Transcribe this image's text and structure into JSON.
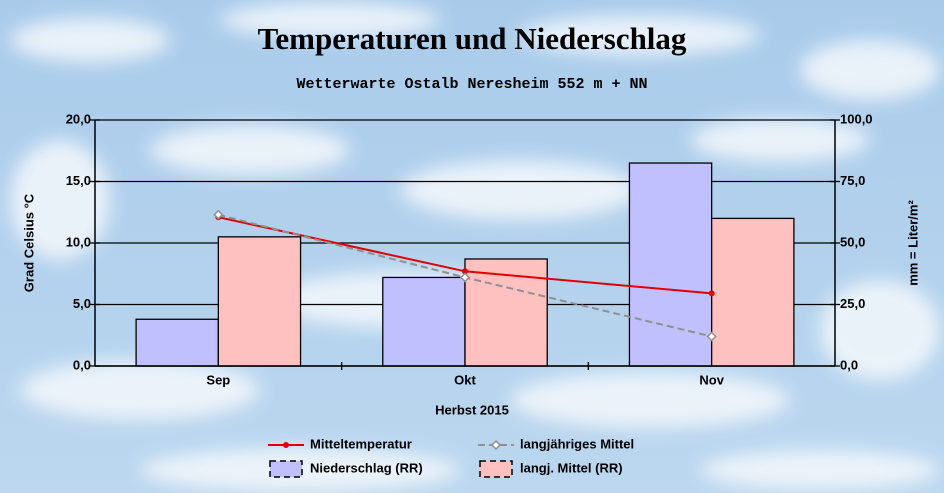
{
  "chart_data": {
    "type": "bar",
    "title": "Temperaturen und Niederschlag",
    "subtitle": "Wetterwarte Ostalb Neresheim 552 m + NN",
    "x_label": "Herbst 2015",
    "y_label": "Grad Celsius °C",
    "y2_label": "mm = Liter/m²",
    "categories": [
      "Sep",
      "Okt",
      "Nov"
    ],
    "ylim": [
      0,
      20
    ],
    "yticks": [
      {
        "value": 0,
        "label": "0,0"
      },
      {
        "value": 5,
        "label": "5,0"
      },
      {
        "value": 10,
        "label": "10,0"
      },
      {
        "value": 15,
        "label": "15,0"
      },
      {
        "value": 20,
        "label": "20,0"
      }
    ],
    "y2lim": [
      0,
      100
    ],
    "y2ticks": [
      {
        "value": 0,
        "label": "0,0"
      },
      {
        "value": 25,
        "label": "25,0"
      },
      {
        "value": 50,
        "label": "50,0"
      },
      {
        "value": 75,
        "label": "75,0"
      },
      {
        "value": 100,
        "label": "100,0"
      }
    ],
    "grid": true,
    "legend": "bottom",
    "series": [
      {
        "name": "Mitteltemperatur",
        "type": "line",
        "color": "#e00000",
        "marker": "circle",
        "linestyle": "solid",
        "values": [
          12.1,
          7.7,
          5.9
        ]
      },
      {
        "name": "langjähriges Mittel",
        "type": "line",
        "color": "#909090",
        "marker": "diamond",
        "linestyle": "dashed",
        "values": [
          12.3,
          7.2,
          2.4
        ]
      },
      {
        "name": "Niederschlag (RR)",
        "type": "bar",
        "axis": "y2",
        "color": "#c0c0ff",
        "values": [
          19,
          36,
          82.5
        ]
      },
      {
        "name": "langj. Mittel (RR)",
        "type": "bar",
        "axis": "y2",
        "color": "#ffc0c0",
        "values": [
          52.5,
          43.5,
          60
        ]
      }
    ]
  }
}
